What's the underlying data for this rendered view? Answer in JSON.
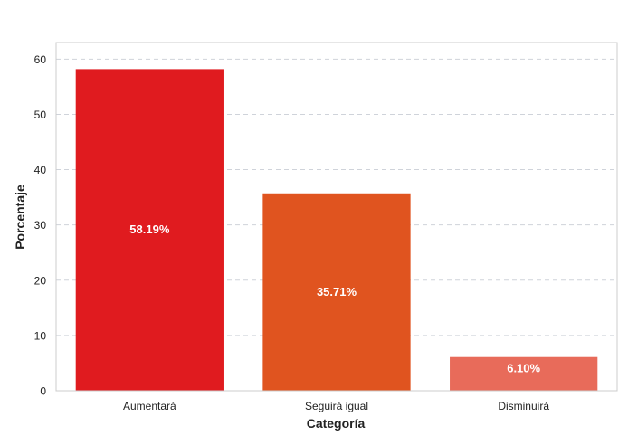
{
  "chart_data": {
    "type": "bar",
    "title": "",
    "xlabel": "Categoría",
    "ylabel": "Porcentaje",
    "categories": [
      "Aumentará",
      "Seguirá igual",
      "Disminuirá"
    ],
    "values": [
      58.19,
      35.71,
      6.1
    ],
    "value_labels": [
      "58.19%",
      "35.71%",
      "6.10%"
    ],
    "colors": [
      "#e01b1f",
      "#e0541f",
      "#e86b5a"
    ],
    "ylim": [
      0,
      63
    ],
    "yticks": [
      0,
      10,
      20,
      30,
      40,
      50,
      60
    ],
    "grid": true,
    "legend": "none"
  }
}
